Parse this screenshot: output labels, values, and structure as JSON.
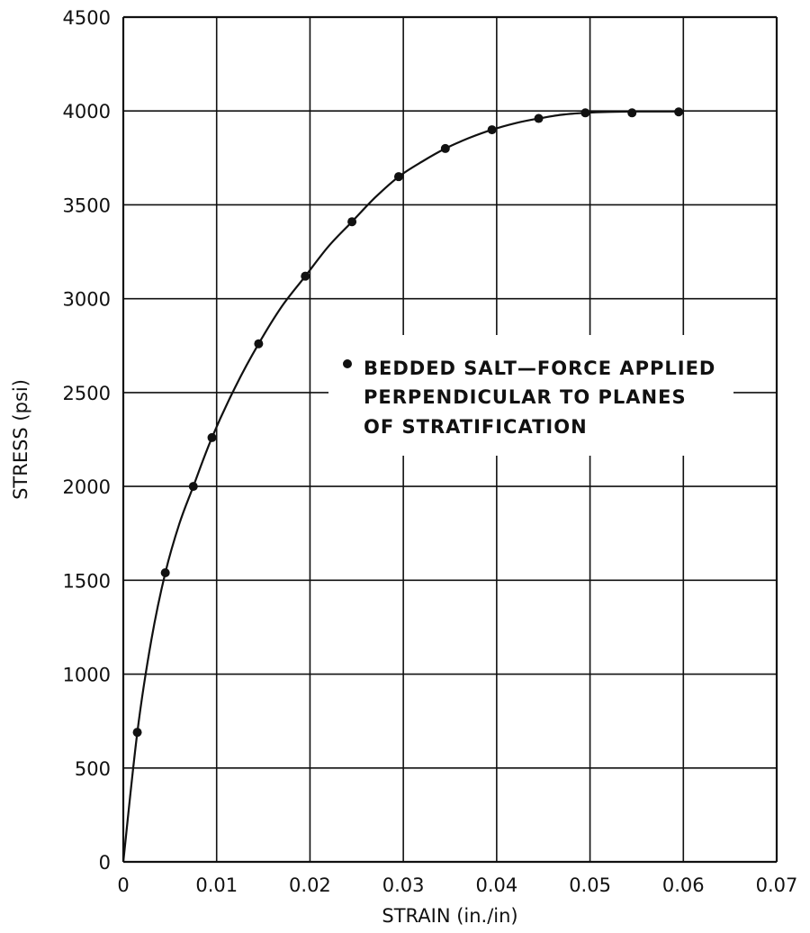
{
  "chart_data": {
    "type": "scatter",
    "title": "",
    "xlabel": "STRAIN (in./in)",
    "ylabel": "STRESS (psi)",
    "xlim": [
      0,
      0.07
    ],
    "ylim": [
      0,
      4500
    ],
    "x_ticks": [
      0,
      0.01,
      0.02,
      0.03,
      0.04,
      0.05,
      0.06,
      0.07
    ],
    "x_tick_labels": [
      "0",
      "0.01",
      "0.02",
      "0.03",
      "0.04",
      "0.05",
      "0.06",
      "0.07"
    ],
    "y_ticks": [
      0,
      500,
      1000,
      1500,
      2000,
      2500,
      3000,
      3500,
      4000,
      4500
    ],
    "y_tick_labels": [
      "0",
      "500",
      "1000",
      "1500",
      "2000",
      "2500",
      "3000",
      "3500",
      "4000",
      "4500"
    ],
    "grid": true,
    "legend_position": "center-right",
    "series": [
      {
        "name": "BEDDED SALT—FORCE APPLIED PERPENDICULAR TO PLANES OF STRATIFICATION",
        "x": [
          0.0015,
          0.0045,
          0.0075,
          0.0095,
          0.0145,
          0.0195,
          0.0245,
          0.0295,
          0.0345,
          0.0395,
          0.0445,
          0.0495,
          0.0545,
          0.0595
        ],
        "y": [
          690,
          1540,
          2000,
          2260,
          2760,
          3120,
          3410,
          3650,
          3800,
          3900,
          3960,
          3990,
          3990,
          3995
        ]
      }
    ],
    "fit_curve": {
      "x": [
        0,
        0.0015,
        0.003,
        0.0045,
        0.006,
        0.0075,
        0.0095,
        0.012,
        0.0145,
        0.017,
        0.0195,
        0.022,
        0.0245,
        0.027,
        0.0295,
        0.032,
        0.0345,
        0.037,
        0.0395,
        0.042,
        0.0445,
        0.047,
        0.0495,
        0.052,
        0.055,
        0.0595
      ],
      "y": [
        0,
        690,
        1180,
        1540,
        1800,
        2000,
        2260,
        2530,
        2760,
        2960,
        3120,
        3280,
        3410,
        3540,
        3650,
        3730,
        3800,
        3855,
        3900,
        3935,
        3960,
        3980,
        3990,
        3995,
        3997,
        3997
      ]
    },
    "legend": {
      "lines": [
        "BEDDED SALT—FORCE APPLIED",
        "PERPENDICULAR TO PLANES",
        "OF STRATIFICATION"
      ]
    },
    "colors": {
      "ink": "#111111",
      "background": "#ffffff"
    }
  }
}
